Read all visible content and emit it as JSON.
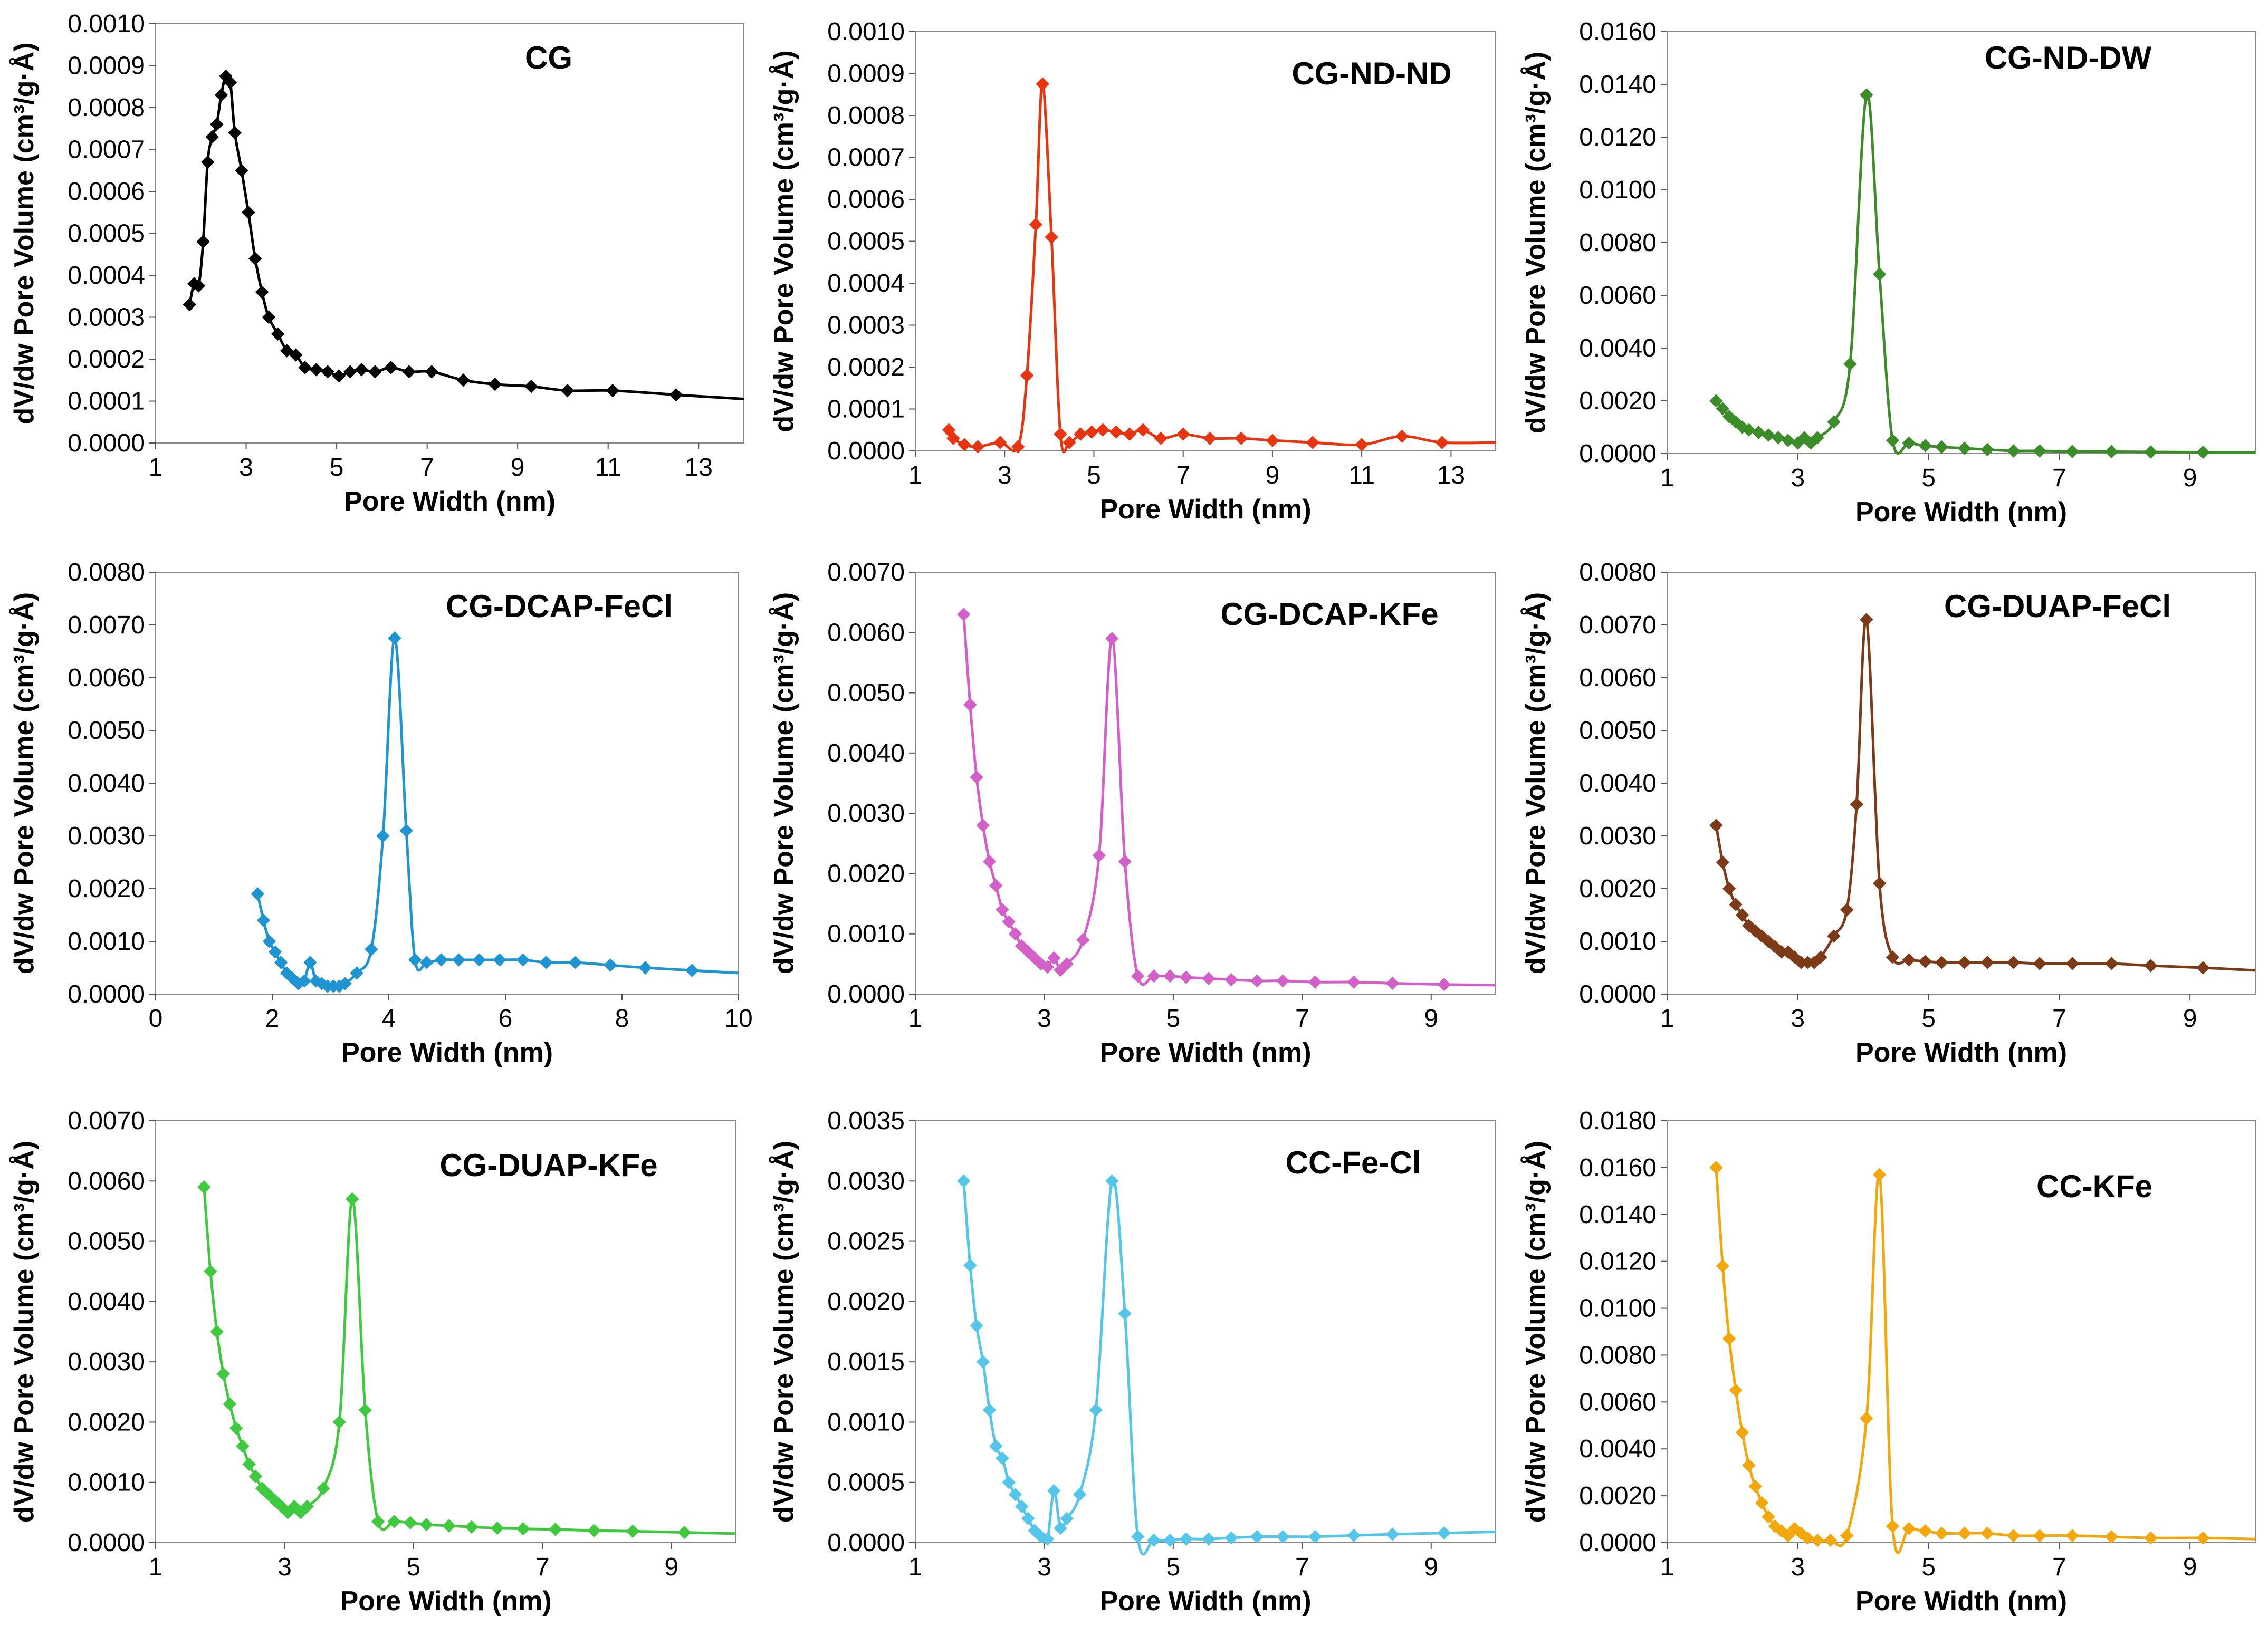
{
  "chart_data": [
    {
      "type": "line",
      "title": "CG",
      "color": "#000000",
      "xlabel": "Pore Width (nm)",
      "ylabel": "dV/dw Pore Volume (cm³/g·Å)",
      "xlim": [
        1,
        14
      ],
      "ylim": [
        0,
        0.001
      ],
      "xticks": [
        1,
        3,
        5,
        7,
        9,
        11,
        13
      ],
      "yticks": [
        "0.0000",
        "0.0001",
        "0.0002",
        "0.0003",
        "0.0004",
        "0.0005",
        "0.0006",
        "0.0007",
        "0.0008",
        "0.0009",
        "0.0010"
      ],
      "x": [
        1.75,
        1.85,
        1.95,
        2.05,
        2.15,
        2.25,
        2.35,
        2.45,
        2.55,
        2.65,
        2.75,
        2.9,
        3.05,
        3.2,
        3.35,
        3.5,
        3.7,
        3.9,
        4.1,
        4.3,
        4.55,
        4.8,
        5.05,
        5.3,
        5.55,
        5.85,
        6.2,
        6.6,
        7.1,
        7.8,
        8.5,
        9.3,
        10.1,
        11.1,
        12.5,
        14
      ],
      "y": [
        0.00033,
        0.00038,
        0.000375,
        0.00048,
        0.00067,
        0.00073,
        0.00076,
        0.00083,
        0.000875,
        0.00086,
        0.00074,
        0.00065,
        0.00055,
        0.00044,
        0.00036,
        0.0003,
        0.00026,
        0.00022,
        0.00021,
        0.00018,
        0.000175,
        0.00017,
        0.00016,
        0.00017,
        0.000175,
        0.00017,
        0.00018,
        0.00017,
        0.00017,
        0.00015,
        0.00014,
        0.000135,
        0.000125,
        0.000125,
        0.000115,
        0.000105
      ]
    },
    {
      "type": "line",
      "title": "CG-ND-ND",
      "color": "#e8340f",
      "xlabel": "Pore Width (nm)",
      "ylabel": "dV/dw Pore Volume (cm³/g·Å)",
      "xlim": [
        1,
        14
      ],
      "ylim": [
        0,
        0.001
      ],
      "xticks": [
        1,
        3,
        5,
        7,
        9,
        11,
        13
      ],
      "yticks": [
        "0.0000",
        "0.0001",
        "0.0002",
        "0.0003",
        "0.0004",
        "0.0005",
        "0.0006",
        "0.0007",
        "0.0008",
        "0.0009",
        "0.0010"
      ],
      "x": [
        1.75,
        1.85,
        2.1,
        2.4,
        2.9,
        3.3,
        3.5,
        3.7,
        3.85,
        4.05,
        4.25,
        4.45,
        4.7,
        4.95,
        5.2,
        5.5,
        5.8,
        6.1,
        6.5,
        7.0,
        7.6,
        8.3,
        9.0,
        9.9,
        11.0,
        11.9,
        12.8,
        14
      ],
      "y": [
        5e-05,
        3e-05,
        1.5e-05,
        1e-05,
        2e-05,
        1e-05,
        0.00018,
        0.00054,
        0.000875,
        0.00051,
        4e-05,
        2e-05,
        4e-05,
        4.5e-05,
        5e-05,
        4.5e-05,
        4e-05,
        5e-05,
        3e-05,
        4e-05,
        3e-05,
        3e-05,
        2.5e-05,
        2e-05,
        1.5e-05,
        3.5e-05,
        2e-05,
        2e-05
      ]
    },
    {
      "type": "line",
      "title": "CG-ND-DW",
      "color": "#3d8c2a",
      "xlabel": "Pore Width (nm)",
      "ylabel": "dV/dw Pore Volume (cm³/g·Å)",
      "xlim": [
        1,
        10
      ],
      "ylim": [
        0,
        0.016
      ],
      "xticks": [
        1,
        3,
        5,
        7,
        9
      ],
      "yticks": [
        "0.0000",
        "0.0020",
        "0.0040",
        "0.0060",
        "0.0080",
        "0.0100",
        "0.0120",
        "0.0140",
        "0.0160"
      ],
      "x": [
        1.75,
        1.85,
        1.95,
        2.05,
        2.15,
        2.25,
        2.4,
        2.55,
        2.7,
        2.85,
        3.0,
        3.1,
        3.2,
        3.3,
        3.55,
        3.8,
        4.05,
        4.25,
        4.45,
        4.7,
        4.95,
        5.2,
        5.55,
        5.9,
        6.3,
        6.7,
        7.2,
        7.8,
        8.4,
        9.2,
        10
      ],
      "y": [
        0.002,
        0.0017,
        0.0014,
        0.0012,
        0.001,
        0.0009,
        0.0008,
        0.0007,
        0.0006,
        0.0005,
        0.0004,
        0.0006,
        0.0004,
        0.0006,
        0.0012,
        0.0034,
        0.0136,
        0.0068,
        0.0005,
        0.0004,
        0.0003,
        0.00025,
        0.0002,
        0.00015,
        0.0001,
        0.0001,
        8e-05,
        7e-05,
        6e-05,
        5e-05,
        5e-05
      ]
    },
    {
      "type": "line",
      "title": "CG-DCAP-FeCl",
      "color": "#1e94d2",
      "xlabel": "Pore Width (nm)",
      "ylabel": "dV/dw Pore Volume (cm³/g·Å)",
      "xlim": [
        0,
        10
      ],
      "ylim": [
        0,
        0.008
      ],
      "xticks": [
        0,
        2,
        4,
        6,
        8,
        10
      ],
      "yticks": [
        "0.0000",
        "0.0010",
        "0.0020",
        "0.0030",
        "0.0040",
        "0.0050",
        "0.0060",
        "0.0070",
        "0.0080"
      ],
      "x": [
        1.75,
        1.85,
        1.95,
        2.05,
        2.15,
        2.25,
        2.35,
        2.45,
        2.55,
        2.65,
        2.75,
        2.85,
        2.95,
        3.05,
        3.15,
        3.25,
        3.45,
        3.7,
        3.9,
        4.1,
        4.3,
        4.45,
        4.65,
        4.9,
        5.2,
        5.55,
        5.9,
        6.3,
        6.7,
        7.2,
        7.8,
        8.4,
        9.2,
        10
      ],
      "y": [
        0.0019,
        0.0014,
        0.001,
        0.0008,
        0.0006,
        0.0004,
        0.0003,
        0.0002,
        0.00025,
        0.0006,
        0.00025,
        0.0002,
        0.00015,
        0.00015,
        0.00015,
        0.0002,
        0.0004,
        0.00085,
        0.003,
        0.00675,
        0.0031,
        0.00065,
        0.0006,
        0.00065,
        0.00065,
        0.00065,
        0.00065,
        0.00065,
        0.0006,
        0.0006,
        0.00055,
        0.0005,
        0.00045,
        0.0004
      ]
    },
    {
      "type": "line",
      "title": "CG-DCAP-KFe",
      "color": "#d260c8",
      "xlabel": "Pore Width (nm)",
      "ylabel": "dV/dw Pore Volume (cm³/g·Å)",
      "xlim": [
        1,
        10
      ],
      "ylim": [
        0,
        0.007
      ],
      "xticks": [
        1,
        3,
        5,
        7,
        9
      ],
      "yticks": [
        "0.0000",
        "0.0010",
        "0.0020",
        "0.0030",
        "0.0040",
        "0.0050",
        "0.0060",
        "0.0070"
      ],
      "x": [
        1.75,
        1.85,
        1.95,
        2.05,
        2.15,
        2.25,
        2.35,
        2.45,
        2.55,
        2.65,
        2.75,
        2.85,
        2.95,
        3.05,
        3.15,
        3.25,
        3.35,
        3.6,
        3.85,
        4.05,
        4.25,
        4.45,
        4.7,
        4.95,
        5.2,
        5.55,
        5.9,
        6.3,
        6.7,
        7.2,
        7.8,
        8.4,
        9.2,
        10
      ],
      "y": [
        0.0063,
        0.0048,
        0.0036,
        0.0028,
        0.0022,
        0.0018,
        0.0014,
        0.0012,
        0.001,
        0.0008,
        0.0007,
        0.0006,
        0.0005,
        0.00045,
        0.0006,
        0.0004,
        0.0005,
        0.0009,
        0.0023,
        0.0059,
        0.0022,
        0.0003,
        0.0003,
        0.0003,
        0.00028,
        0.00026,
        0.00024,
        0.00022,
        0.00022,
        0.0002,
        0.0002,
        0.00018,
        0.00016,
        0.00015
      ]
    },
    {
      "type": "line",
      "title": "CG-DUAP-FeCl",
      "color": "#7c3a16",
      "xlabel": "Pore Width (nm)",
      "ylabel": "dV/dw Pore Volume (cm³/g·Å)",
      "xlim": [
        1,
        10
      ],
      "ylim": [
        0,
        0.008
      ],
      "xticks": [
        1,
        3,
        5,
        7,
        9
      ],
      "yticks": [
        "0.0000",
        "0.0010",
        "0.0020",
        "0.0030",
        "0.0040",
        "0.0050",
        "0.0060",
        "0.0070",
        "0.0080"
      ],
      "x": [
        1.75,
        1.85,
        1.95,
        2.05,
        2.15,
        2.25,
        2.35,
        2.45,
        2.55,
        2.65,
        2.75,
        2.85,
        2.95,
        3.05,
        3.15,
        3.25,
        3.35,
        3.55,
        3.75,
        3.9,
        4.05,
        4.25,
        4.45,
        4.7,
        4.95,
        5.2,
        5.55,
        5.9,
        6.3,
        6.7,
        7.2,
        7.8,
        8.4,
        9.2,
        10
      ],
      "y": [
        0.0032,
        0.0025,
        0.002,
        0.0017,
        0.0015,
        0.0013,
        0.0012,
        0.0011,
        0.001,
        0.0009,
        0.0008,
        0.0008,
        0.0007,
        0.0006,
        0.0006,
        0.0006,
        0.0007,
        0.0011,
        0.0016,
        0.0036,
        0.0071,
        0.0021,
        0.0007,
        0.00065,
        0.00062,
        0.0006,
        0.0006,
        0.0006,
        0.0006,
        0.00058,
        0.00058,
        0.00058,
        0.00054,
        0.0005,
        0.00045
      ]
    },
    {
      "type": "line",
      "title": "CG-DUAP-KFe",
      "color": "#3fc93f",
      "xlabel": "Pore Width (nm)",
      "ylabel": "dV/dw Pore Volume (cm³/g·Å)",
      "xlim": [
        1,
        10
      ],
      "ylim": [
        0,
        0.007
      ],
      "xticks": [
        1,
        3,
        5,
        7,
        9
      ],
      "yticks": [
        "0.0000",
        "0.0010",
        "0.0020",
        "0.0030",
        "0.0040",
        "0.0050",
        "0.0060",
        "0.0070"
      ],
      "x": [
        1.75,
        1.85,
        1.95,
        2.05,
        2.15,
        2.25,
        2.35,
        2.45,
        2.55,
        2.65,
        2.75,
        2.85,
        2.95,
        3.05,
        3.15,
        3.25,
        3.35,
        3.6,
        3.85,
        4.05,
        4.25,
        4.45,
        4.7,
        4.95,
        5.2,
        5.55,
        5.9,
        6.3,
        6.7,
        7.2,
        7.8,
        8.4,
        9.2,
        10
      ],
      "y": [
        0.0059,
        0.0045,
        0.0035,
        0.0028,
        0.0023,
        0.0019,
        0.0016,
        0.0013,
        0.0011,
        0.0009,
        0.0008,
        0.0007,
        0.0006,
        0.0005,
        0.0006,
        0.0005,
        0.0006,
        0.0009,
        0.002,
        0.0057,
        0.0022,
        0.00035,
        0.00035,
        0.00033,
        0.0003,
        0.00028,
        0.00026,
        0.00024,
        0.00023,
        0.00022,
        0.0002,
        0.00019,
        0.00017,
        0.00015
      ]
    },
    {
      "type": "line",
      "title": "CC-Fe-Cl",
      "color": "#54c6ea",
      "xlabel": "Pore Width (nm)",
      "ylabel": "dV/dw Pore Volume (cm³/g·Å)",
      "xlim": [
        1,
        10
      ],
      "ylim": [
        0,
        0.0035
      ],
      "xticks": [
        1,
        3,
        5,
        7,
        9
      ],
      "yticks": [
        "0.0000",
        "0.0005",
        "0.0010",
        "0.0015",
        "0.0020",
        "0.0025",
        "0.0030",
        "0.0035"
      ],
      "x": [
        1.75,
        1.85,
        1.95,
        2.05,
        2.15,
        2.25,
        2.35,
        2.45,
        2.55,
        2.65,
        2.75,
        2.85,
        2.95,
        3.05,
        3.15,
        3.25,
        3.35,
        3.55,
        3.8,
        4.05,
        4.25,
        4.45,
        4.7,
        4.95,
        5.2,
        5.55,
        5.9,
        6.3,
        6.7,
        7.2,
        7.8,
        8.4,
        9.2,
        10
      ],
      "y": [
        0.003,
        0.0023,
        0.0018,
        0.0015,
        0.0011,
        0.0008,
        0.0007,
        0.0005,
        0.0004,
        0.0003,
        0.0002,
        0.0001,
        5e-05,
        3e-05,
        0.00043,
        0.00012,
        0.0002,
        0.0004,
        0.0011,
        0.003,
        0.0019,
        5e-05,
        2e-05,
        2e-05,
        3e-05,
        3e-05,
        4e-05,
        5e-05,
        5e-05,
        5e-05,
        6e-05,
        7e-05,
        8e-05,
        9e-05
      ]
    },
    {
      "type": "line",
      "title": "CC-KFe",
      "color": "#f2a80c",
      "xlabel": "Pore Width (nm)",
      "ylabel": "dV/dw Pore Volume (cm³/g·Å)",
      "xlim": [
        1,
        10
      ],
      "ylim": [
        0,
        0.018
      ],
      "xticks": [
        1,
        3,
        5,
        7,
        9
      ],
      "yticks": [
        "0.0000",
        "0.0020",
        "0.0040",
        "0.0060",
        "0.0080",
        "0.0100",
        "0.0120",
        "0.0140",
        "0.0160",
        "0.0180"
      ],
      "x": [
        1.75,
        1.85,
        1.95,
        2.05,
        2.15,
        2.25,
        2.35,
        2.45,
        2.55,
        2.65,
        2.75,
        2.85,
        2.95,
        3.05,
        3.15,
        3.3,
        3.5,
        3.75,
        4.05,
        4.25,
        4.45,
        4.7,
        4.95,
        5.2,
        5.55,
        5.9,
        6.3,
        6.7,
        7.2,
        7.8,
        8.4,
        9.2,
        10
      ],
      "y": [
        0.016,
        0.0118,
        0.0087,
        0.0065,
        0.0047,
        0.0033,
        0.0024,
        0.0017,
        0.0011,
        0.0007,
        0.0005,
        0.0003,
        0.0006,
        0.0004,
        0.0002,
        0.0001,
        0.0001,
        0.0003,
        0.0053,
        0.0157,
        0.0007,
        0.0006,
        0.0005,
        0.0004,
        0.0004,
        0.0004,
        0.0003,
        0.0003,
        0.0003,
        0.00025,
        0.0002,
        0.0002,
        0.00015
      ]
    }
  ]
}
